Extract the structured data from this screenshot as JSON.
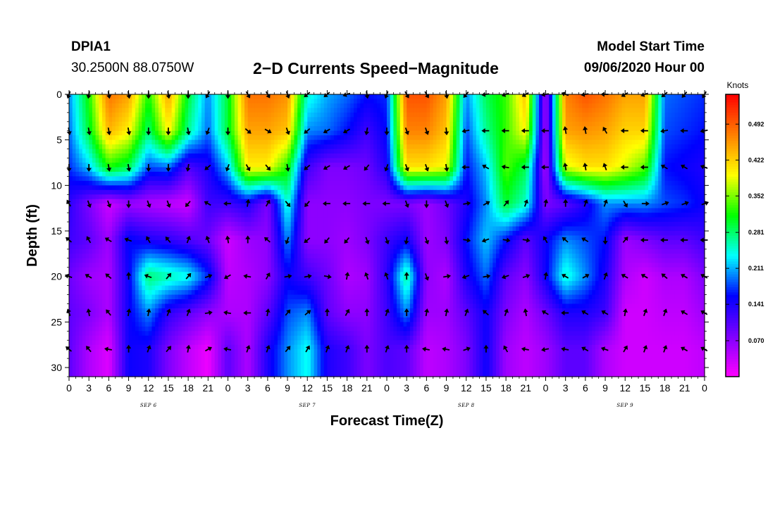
{
  "header": {
    "station": "DPIA1",
    "coords": "30.2500N 88.0750W",
    "title": "2−D Currents Speed−Magnitude",
    "start_label": "Model Start Time",
    "start_value": "09/06/2020 Hour 00"
  },
  "chart_data": {
    "type": "heatmap",
    "title": "2−D Currents Speed−Magnitude",
    "xlabel": "Forecast Time(Z)",
    "ylabel": "Depth (ft)",
    "x_hours": [
      0,
      3,
      6,
      9,
      12,
      15,
      18,
      21,
      24,
      27,
      30,
      33,
      36,
      39,
      42,
      45,
      48,
      51,
      54,
      57,
      60,
      63,
      66,
      69,
      72,
      75,
      78,
      81,
      84,
      87,
      90,
      93,
      96
    ],
    "x_tick_labels": [
      "0",
      "3",
      "6",
      "9",
      "12",
      "15",
      "18",
      "21",
      "0",
      "3",
      "6",
      "9",
      "12",
      "15",
      "18",
      "21",
      "0",
      "3",
      "6",
      "9",
      "12",
      "15",
      "18",
      "21",
      "0",
      "3",
      "6",
      "9",
      "12",
      "15",
      "18",
      "21",
      "0"
    ],
    "day_labels": [
      {
        "text": "SEP 6",
        "hour": 12
      },
      {
        "text": "SEP 7",
        "hour": 36
      },
      {
        "text": "SEP 8",
        "hour": 60
      },
      {
        "text": "SEP 9",
        "hour": 84
      }
    ],
    "xlim": [
      0,
      96
    ],
    "y_ticks": [
      0,
      5,
      10,
      15,
      20,
      25,
      30
    ],
    "ylim": [
      31,
      0
    ],
    "depth_levels_ft": [
      0,
      4,
      8,
      12,
      16,
      20,
      24,
      28
    ],
    "speed_grid_knots": [
      [
        0.2,
        0.32,
        0.48,
        0.45,
        0.32,
        0.45,
        0.3,
        0.2,
        0.3,
        0.48,
        0.48,
        0.46,
        0.25,
        0.21,
        0.19,
        0.16,
        0.17,
        0.5,
        0.5,
        0.45,
        0.2,
        0.29,
        0.33,
        0.43,
        0.05,
        0.47,
        0.5,
        0.48,
        0.45,
        0.45,
        0.19,
        0.18,
        0.17
      ],
      [
        0.19,
        0.3,
        0.44,
        0.4,
        0.28,
        0.4,
        0.27,
        0.19,
        0.3,
        0.45,
        0.45,
        0.43,
        0.2,
        0.19,
        0.16,
        0.12,
        0.16,
        0.47,
        0.47,
        0.43,
        0.18,
        0.27,
        0.33,
        0.4,
        0.05,
        0.45,
        0.46,
        0.45,
        0.42,
        0.42,
        0.18,
        0.17,
        0.16
      ],
      [
        0.17,
        0.22,
        0.32,
        0.29,
        0.18,
        0.19,
        0.11,
        0.14,
        0.22,
        0.4,
        0.4,
        0.32,
        0.12,
        0.08,
        0.08,
        0.09,
        0.14,
        0.41,
        0.41,
        0.39,
        0.16,
        0.22,
        0.34,
        0.29,
        0.05,
        0.38,
        0.41,
        0.41,
        0.38,
        0.34,
        0.16,
        0.15,
        0.14
      ],
      [
        0.13,
        0.08,
        0.03,
        0.06,
        0.05,
        0.04,
        0.03,
        0.12,
        0.12,
        0.14,
        0.08,
        0.25,
        0.07,
        0.07,
        0.07,
        0.08,
        0.08,
        0.08,
        0.06,
        0.09,
        0.14,
        0.2,
        0.3,
        0.25,
        0.08,
        0.1,
        0.14,
        0.2,
        0.2,
        0.2,
        0.18,
        0.17,
        0.15
      ],
      [
        0.12,
        0.1,
        0.06,
        0.16,
        0.14,
        0.13,
        0.11,
        0.09,
        0.03,
        0.06,
        0.07,
        0.2,
        0.07,
        0.07,
        0.06,
        0.08,
        0.12,
        0.15,
        0.06,
        0.08,
        0.16,
        0.22,
        0.16,
        0.1,
        0.15,
        0.2,
        0.18,
        0.16,
        0.06,
        0.08,
        0.1,
        0.1,
        0.12
      ],
      [
        0.09,
        0.06,
        0.05,
        0.15,
        0.28,
        0.26,
        0.24,
        0.17,
        0.04,
        0.05,
        0.07,
        0.15,
        0.12,
        0.09,
        0.05,
        0.06,
        0.13,
        0.27,
        0.07,
        0.05,
        0.14,
        0.19,
        0.1,
        0.07,
        0.15,
        0.25,
        0.2,
        0.14,
        0.05,
        0.03,
        0.05,
        0.05,
        0.08
      ],
      [
        0.1,
        0.08,
        0.05,
        0.15,
        0.2,
        0.13,
        0.1,
        0.07,
        0.05,
        0.05,
        0.1,
        0.18,
        0.2,
        0.1,
        0.07,
        0.07,
        0.12,
        0.2,
        0.06,
        0.06,
        0.1,
        0.15,
        0.08,
        0.05,
        0.09,
        0.14,
        0.14,
        0.12,
        0.03,
        0.03,
        0.04,
        0.04,
        0.06
      ],
      [
        0.1,
        0.05,
        0.02,
        0.15,
        0.14,
        0.08,
        0.04,
        0.01,
        0.1,
        0.05,
        0.14,
        0.2,
        0.24,
        0.14,
        0.12,
        0.08,
        0.11,
        0.1,
        0.04,
        0.05,
        0.08,
        0.15,
        0.06,
        0.04,
        0.06,
        0.1,
        0.1,
        0.05,
        0.03,
        0.03,
        0.03,
        0.03,
        0.04
      ]
    ],
    "direction_grid_deg": [
      [
        200,
        190,
        170,
        170,
        180,
        170,
        180,
        210,
        180,
        150,
        150,
        160,
        230,
        230,
        250,
        170,
        200,
        150,
        150,
        170,
        220,
        260,
        250,
        240,
        260,
        290,
        260,
        270,
        240,
        250,
        230,
        220,
        210
      ],
      [
        170,
        170,
        170,
        170,
        180,
        180,
        170,
        200,
        180,
        130,
        120,
        160,
        230,
        240,
        240,
        190,
        180,
        160,
        160,
        175,
        260,
        270,
        270,
        270,
        270,
        350,
        350,
        330,
        270,
        270,
        260,
        270,
        260
      ],
      [
        180,
        180,
        170,
        170,
        180,
        180,
        190,
        230,
        200,
        150,
        140,
        170,
        230,
        240,
        240,
        220,
        200,
        160,
        160,
        170,
        270,
        300,
        280,
        270,
        270,
        350,
        350,
        340,
        270,
        270,
        300,
        300,
        290
      ],
      [
        330,
        160,
        160,
        180,
        160,
        160,
        220,
        300,
        270,
        10,
        30,
        140,
        220,
        270,
        270,
        270,
        270,
        160,
        180,
        160,
        80,
        60,
        40,
        20,
        10,
        0,
        20,
        20,
        150,
        90,
        70,
        70,
        70
      ],
      [
        310,
        330,
        300,
        290,
        330,
        320,
        20,
        340,
        350,
        0,
        310,
        200,
        230,
        220,
        220,
        160,
        160,
        190,
        160,
        170,
        100,
        250,
        100,
        100,
        330,
        310,
        300,
        180,
        40,
        270,
        270,
        270,
        270
      ],
      [
        290,
        300,
        310,
        0,
        290,
        40,
        40,
        70,
        240,
        280,
        30,
        80,
        80,
        100,
        10,
        340,
        340,
        0,
        160,
        80,
        250,
        80,
        250,
        70,
        10,
        300,
        60,
        20,
        300,
        300,
        310,
        300,
        300
      ],
      [
        340,
        350,
        320,
        10,
        10,
        20,
        20,
        80,
        280,
        270,
        10,
        40,
        50,
        0,
        30,
        0,
        20,
        0,
        10,
        10,
        20,
        310,
        20,
        350,
        300,
        270,
        300,
        300,
        10,
        20,
        20,
        300,
        300
      ],
      [
        310,
        320,
        280,
        0,
        20,
        40,
        10,
        60,
        280,
        20,
        20,
        40,
        30,
        20,
        20,
        0,
        20,
        0,
        280,
        280,
        70,
        0,
        330,
        280,
        260,
        280,
        300,
        290,
        30,
        20,
        20,
        300,
        300
      ]
    ],
    "colorbar": {
      "unit": "Knots",
      "tick_labels": [
        "0.070",
        "0.141",
        "0.211",
        "0.281",
        "0.352",
        "0.422",
        "0.492"
      ],
      "tick_values": [
        0.07,
        0.141,
        0.211,
        0.281,
        0.352,
        0.422,
        0.492
      ],
      "range": [
        0.0,
        0.55
      ],
      "colors": [
        "#ff00ff",
        "#7f00ff",
        "#0000ff",
        "#00ffff",
        "#00ff00",
        "#ffff00",
        "#ff8000",
        "#ff0000"
      ]
    }
  }
}
